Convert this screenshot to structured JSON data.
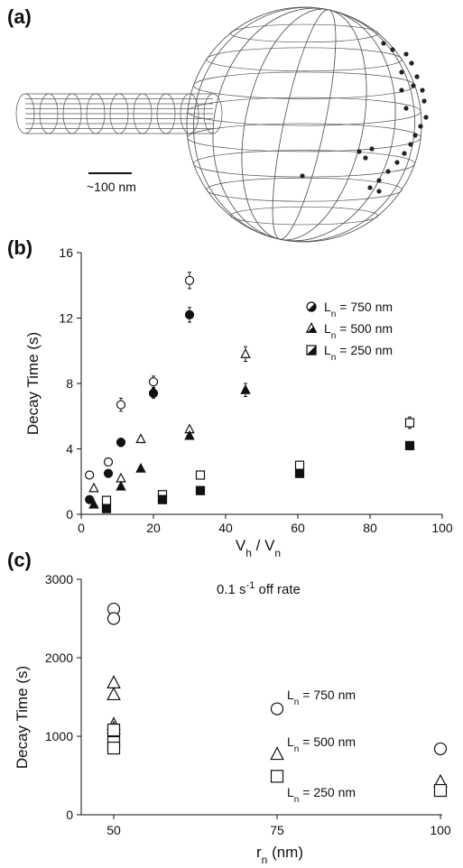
{
  "panels": {
    "a": {
      "label": "(a)",
      "scale_bar_text": "~100 nm"
    },
    "b": {
      "label": "(b)"
    },
    "c": {
      "label": "(c)"
    }
  },
  "chart_data": [
    {
      "type": "scatter",
      "panel": "(b)",
      "title": "",
      "xlabel": "V",
      "xlabel_sub1": "h",
      "xlabel_mid": " / V",
      "xlabel_sub2": "n",
      "ylabel": "Decay Time (s)",
      "xlim": [
        0,
        100
      ],
      "ylim": [
        0,
        16
      ],
      "xticks": [
        0,
        20,
        40,
        60,
        80,
        100
      ],
      "yticks": [
        0,
        4,
        8,
        12,
        16
      ],
      "legend_position": "top-right",
      "legend": [
        {
          "marker": "circle",
          "prefix": "L",
          "sub": "n",
          "text": " = 750 nm"
        },
        {
          "marker": "triangle",
          "prefix": "L",
          "sub": "n",
          "text": " = 500 nm"
        },
        {
          "marker": "square",
          "prefix": "L",
          "sub": "n",
          "text": " = 250 nm"
        }
      ],
      "series": [
        {
          "marker": "circle",
          "fill": "open",
          "x": [
            2.3,
            7.5,
            11,
            20,
            30
          ],
          "y": [
            2.4,
            3.2,
            6.7,
            8.1,
            14.3
          ],
          "err": [
            0,
            0,
            0.4,
            0.35,
            0.5
          ]
        },
        {
          "marker": "circle",
          "fill": "filled",
          "x": [
            2.3,
            7.5,
            11,
            20,
            30
          ],
          "y": [
            0.9,
            2.5,
            4.4,
            7.4,
            12.2
          ],
          "err": [
            0,
            0,
            0.25,
            0.3,
            0.45
          ]
        },
        {
          "marker": "triangle",
          "fill": "open",
          "x": [
            3.5,
            11,
            16.5,
            30,
            45.5
          ],
          "y": [
            1.6,
            2.2,
            4.6,
            5.2,
            9.8
          ],
          "err": [
            0,
            0,
            0,
            0,
            0.45
          ]
        },
        {
          "marker": "triangle",
          "fill": "filled",
          "x": [
            3.5,
            11,
            16.5,
            30,
            45.5
          ],
          "y": [
            0.6,
            1.7,
            2.8,
            4.8,
            7.6
          ],
          "err": [
            0,
            0,
            0,
            0,
            0.4
          ]
        },
        {
          "marker": "square",
          "fill": "open",
          "x": [
            7,
            22.5,
            33,
            60.5,
            91
          ],
          "y": [
            0.85,
            1.2,
            2.4,
            3.0,
            5.6
          ],
          "err": [
            0,
            0,
            0,
            0,
            0.35
          ]
        },
        {
          "marker": "square",
          "fill": "filled",
          "x": [
            7,
            22.5,
            33,
            60.5,
            91
          ],
          "y": [
            0.35,
            0.9,
            1.45,
            2.5,
            4.2
          ],
          "err": [
            0,
            0,
            0,
            0,
            0
          ]
        }
      ]
    },
    {
      "type": "scatter",
      "panel": "(c)",
      "title": "",
      "annotation_main": "0.1 s",
      "annotation_sup": "-1",
      "annotation_tail": " off rate",
      "xlabel": "r",
      "xlabel_sub": "n",
      "xlabel_tail": " (nm)",
      "ylabel": "Decay Time (s)",
      "xcategories": [
        "50",
        "75",
        "100"
      ],
      "ylim": [
        0,
        3000
      ],
      "yticks": [
        0,
        1000,
        2000,
        3000
      ],
      "labels": [
        {
          "prefix": "L",
          "sub": "n",
          "text": " = 750 nm"
        },
        {
          "prefix": "L",
          "sub": "n",
          "text": " = 500 nm"
        },
        {
          "prefix": "L",
          "sub": "n",
          "text": " = 250 nm"
        }
      ],
      "series": [
        {
          "marker": "circle",
          "x": [
            "50",
            "50",
            "75",
            "100"
          ],
          "y": [
            2620,
            2500,
            1350,
            840
          ]
        },
        {
          "marker": "triangle",
          "x": [
            "50",
            "50",
            "50",
            "50",
            "75",
            "100"
          ],
          "y": [
            1680,
            1530,
            1150,
            1100,
            770,
            420
          ]
        },
        {
          "marker": "square",
          "x": [
            "50",
            "50",
            "50",
            "75",
            "100"
          ],
          "y": [
            1080,
            920,
            850,
            490,
            310
          ]
        }
      ]
    }
  ]
}
